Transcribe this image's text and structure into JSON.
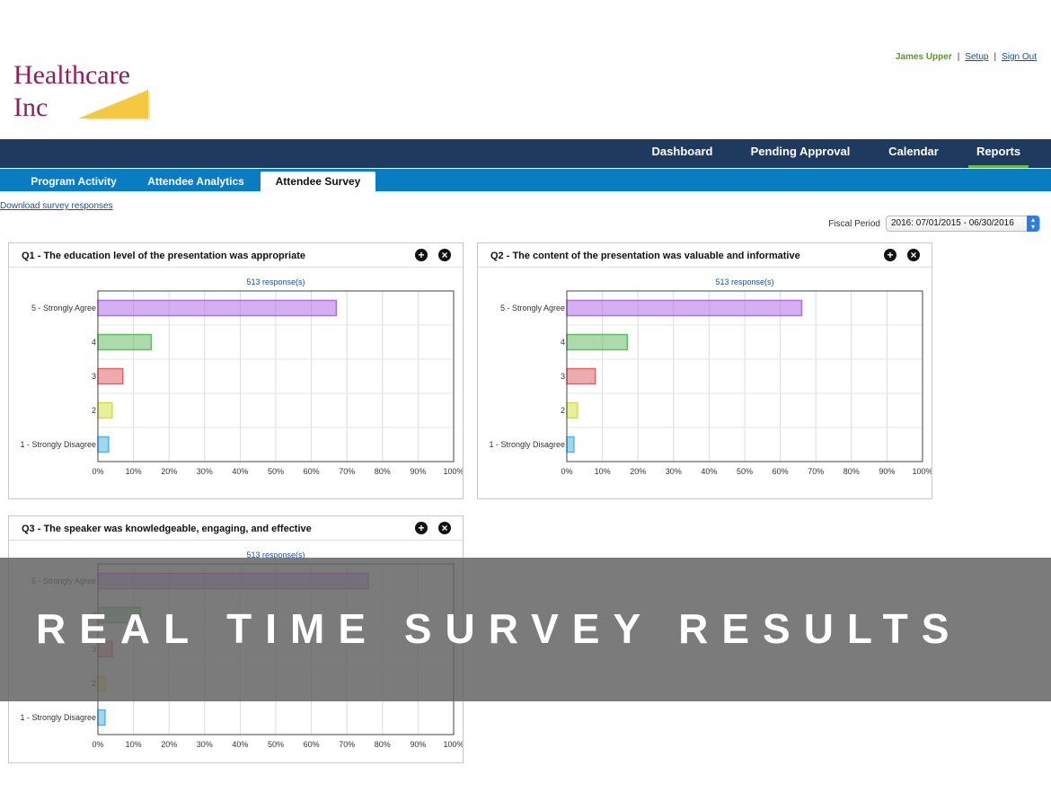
{
  "logo": {
    "line1": "Healthcare",
    "line2": "Inc"
  },
  "user": {
    "name": "James Upper",
    "setup_label": "Setup",
    "signout_label": "Sign Out"
  },
  "nav": {
    "items": [
      {
        "label": "Dashboard"
      },
      {
        "label": "Pending Approval"
      },
      {
        "label": "Calendar"
      },
      {
        "label": "Reports",
        "active": true
      }
    ]
  },
  "subnav": {
    "tabs": [
      {
        "label": "Program Activity"
      },
      {
        "label": "Attendee Analytics"
      },
      {
        "label": "Attendee Survey",
        "active": true
      }
    ]
  },
  "download_label": "Download survey responses",
  "fiscal": {
    "label": "Fiscal Period",
    "value": "2016:  07/01/2015 - 06/30/2016"
  },
  "colors": {
    "nav_bg": "#1e3a5f",
    "subnav_bg": "#0a7dc2",
    "active_underline": "#72b83d",
    "bar_5": "#b36de8",
    "bar_4": "#66bb66",
    "bar_3": "#e06666",
    "bar_2": "#d4e04a",
    "bar_1": "#4ab8e8"
  },
  "icons": {
    "add": "plus-circle-icon",
    "close": "close-circle-icon",
    "select_arrow": "updown-arrow-icon"
  },
  "chart_data": [
    {
      "type": "bar",
      "orientation": "horizontal",
      "title": "Q1 - The education level of the presentation was appropriate",
      "subtitle": "513 response(s)",
      "categories": [
        "5 - Strongly Agree",
        "4",
        "3",
        "2",
        "1 - Strongly Disagree"
      ],
      "values": [
        67,
        15,
        7,
        4,
        3
      ],
      "xlim": [
        0,
        100
      ],
      "xticks": [
        "0%",
        "10%",
        "20%",
        "30%",
        "40%",
        "50%",
        "60%",
        "70%",
        "80%",
        "90%",
        "100%"
      ],
      "grid": true
    },
    {
      "type": "bar",
      "orientation": "horizontal",
      "title": "Q2 - The content of the presentation was valuable and informative",
      "subtitle": "513 response(s)",
      "categories": [
        "5 - Strongly Agree",
        "4",
        "3",
        "2",
        "1 - Strongly Disagree"
      ],
      "values": [
        66,
        17,
        8,
        3,
        2
      ],
      "xlim": [
        0,
        100
      ],
      "xticks": [
        "0%",
        "10%",
        "20%",
        "30%",
        "40%",
        "50%",
        "60%",
        "70%",
        "80%",
        "90%",
        "100%"
      ],
      "grid": true
    },
    {
      "type": "bar",
      "orientation": "horizontal",
      "title": "Q3 - The speaker was knowledgeable, engaging, and effective",
      "subtitle": "513 response(s)",
      "categories": [
        "5 - Strongly Agree",
        "4",
        "3",
        "2",
        "1 - Strongly Disagree"
      ],
      "values": [
        76,
        12,
        4,
        2,
        2
      ],
      "xlim": [
        0,
        100
      ],
      "xticks": [
        "0%",
        "10%",
        "20%",
        "30%",
        "40%",
        "50%",
        "60%",
        "70%",
        "80%",
        "90%",
        "100%"
      ],
      "grid": true
    }
  ],
  "banner_text": "REAL TIME SURVEY RESULTS"
}
